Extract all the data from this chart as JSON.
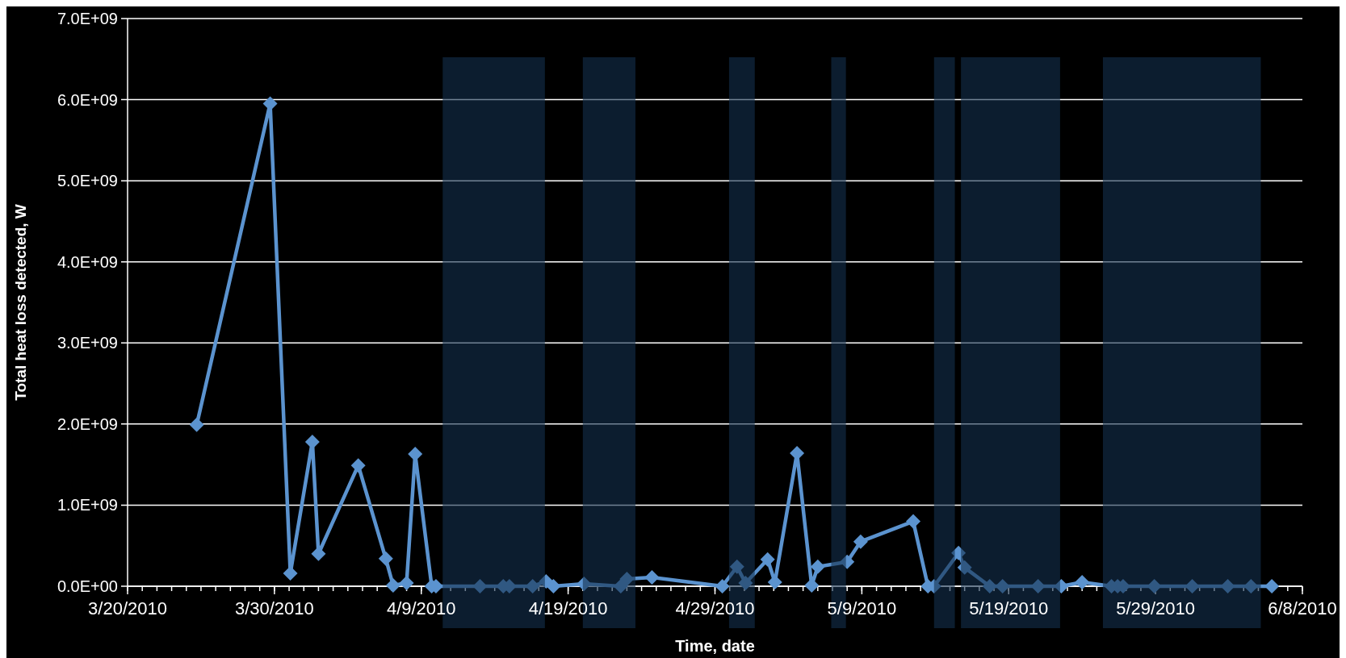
{
  "chart_data": {
    "type": "line",
    "xlabel": "Time, date",
    "ylabel": "Total heat loss detected, W",
    "x": [
      "2010-03-24T17:00",
      "2010-03-29T17:00",
      "2010-03-31T02:00",
      "2010-04-01T14:00",
      "2010-04-02T00:00",
      "2010-04-04T17:00",
      "2010-04-06T14:00",
      "2010-04-07T02:00",
      "2010-04-08T00:00",
      "2010-04-08T14:00",
      "2010-04-09T17:00",
      "2010-04-10T00:00",
      "2010-04-13T00:00",
      "2010-04-14T14:00",
      "2010-04-15T00:00",
      "2010-04-16T14:00",
      "2010-04-17T12:00",
      "2010-04-18T00:00",
      "2010-04-20T02:00",
      "2010-04-22T14:00",
      "2010-04-23T00:00",
      "2010-04-24T17:00",
      "2010-04-29T12:00",
      "2010-04-30T12:00",
      "2010-05-01T02:00",
      "2010-05-02T14:00",
      "2010-05-03T02:00",
      "2010-05-04T14:00",
      "2010-05-05T14:00",
      "2010-05-06T00:00",
      "2010-05-08T00:00",
      "2010-05-08T22:00",
      "2010-05-12T12:00",
      "2010-05-13T12:00",
      "2010-05-13T22:00",
      "2010-05-15T14:00",
      "2010-05-16T00:00",
      "2010-05-17T17:00",
      "2010-05-18T14:00",
      "2010-05-21T00:00",
      "2010-05-22T14:00",
      "2010-05-24T00:00",
      "2010-05-26T00:00",
      "2010-05-26T10:00",
      "2010-05-26T19:00",
      "2010-05-28T22:00",
      "2010-05-31T12:00",
      "2010-06-02T22:00",
      "2010-06-04T12:00",
      "2010-06-05T22:00"
    ],
    "series": [
      {
        "color": "#5b93cf",
        "values": [
          1990000000,
          5950000000,
          160000000,
          1780000000,
          400000000,
          1490000000,
          340000000,
          10000000,
          40000000,
          1630000000,
          0,
          0,
          0,
          0,
          0,
          0,
          60000000,
          0,
          30000000,
          0,
          90000000,
          110000000,
          0,
          240000000,
          40000000,
          330000000,
          50000000,
          1640000000,
          10000000,
          240000000,
          300000000,
          550000000,
          800000000,
          0,
          0,
          410000000,
          230000000,
          0,
          0,
          0,
          0,
          50000000,
          0,
          0,
          0,
          0,
          0,
          0,
          0,
          0
        ]
      }
    ],
    "xlim": [
      "2010-03-20",
      "2010-06-08"
    ],
    "xticks": [
      {
        "value": "2010-03-20",
        "label": "3/20/2010"
      },
      {
        "value": "2010-03-30",
        "label": "3/30/2010"
      },
      {
        "value": "2010-04-09",
        "label": "4/9/2010"
      },
      {
        "value": "2010-04-19",
        "label": "4/19/2010"
      },
      {
        "value": "2010-04-29",
        "label": "4/29/2010"
      },
      {
        "value": "2010-05-09",
        "label": "5/9/2010"
      },
      {
        "value": "2010-05-19",
        "label": "5/19/2010"
      },
      {
        "value": "2010-05-29",
        "label": "5/29/2010"
      },
      {
        "value": "2010-06-08",
        "label": "6/8/2010"
      }
    ],
    "ylim": [
      0,
      7000000000
    ],
    "yticks": [
      {
        "value": 0,
        "label": "0.0E+00"
      },
      {
        "value": 1000000000,
        "label": "1.0E+09"
      },
      {
        "value": 2000000000,
        "label": "2.0E+09"
      },
      {
        "value": 3000000000,
        "label": "3.0E+09"
      },
      {
        "value": 4000000000,
        "label": "4.0E+09"
      },
      {
        "value": 5000000000,
        "label": "5.0E+09"
      },
      {
        "value": 6000000000,
        "label": "6.0E+09"
      },
      {
        "value": 7000000000,
        "label": "7.0E+09"
      }
    ],
    "bands": [
      {
        "axis": "x",
        "from": "2010-04-10T11:00",
        "to": "2010-04-17T10:00",
        "color": "#14304f"
      },
      {
        "axis": "x",
        "from": "2010-04-20T00:00",
        "to": "2010-04-23T14:00",
        "color": "#14304f"
      },
      {
        "axis": "x",
        "from": "2010-04-29T23:00",
        "to": "2010-05-01T17:00",
        "color": "#14304f"
      },
      {
        "axis": "x",
        "from": "2010-05-06T22:00",
        "to": "2010-05-07T22:00",
        "color": "#14304f"
      },
      {
        "axis": "x",
        "from": "2010-05-13T22:00",
        "to": "2010-05-15T08:00",
        "color": "#14304f"
      },
      {
        "axis": "x",
        "from": "2010-05-15T18:00",
        "to": "2010-05-22T12:00",
        "color": "#14304f"
      },
      {
        "axis": "x",
        "from": "2010-05-25T10:00",
        "to": "2010-06-05T04:00",
        "color": "#14304f"
      }
    ],
    "grid": "y",
    "marker": "diamond",
    "line_style": "solid"
  }
}
